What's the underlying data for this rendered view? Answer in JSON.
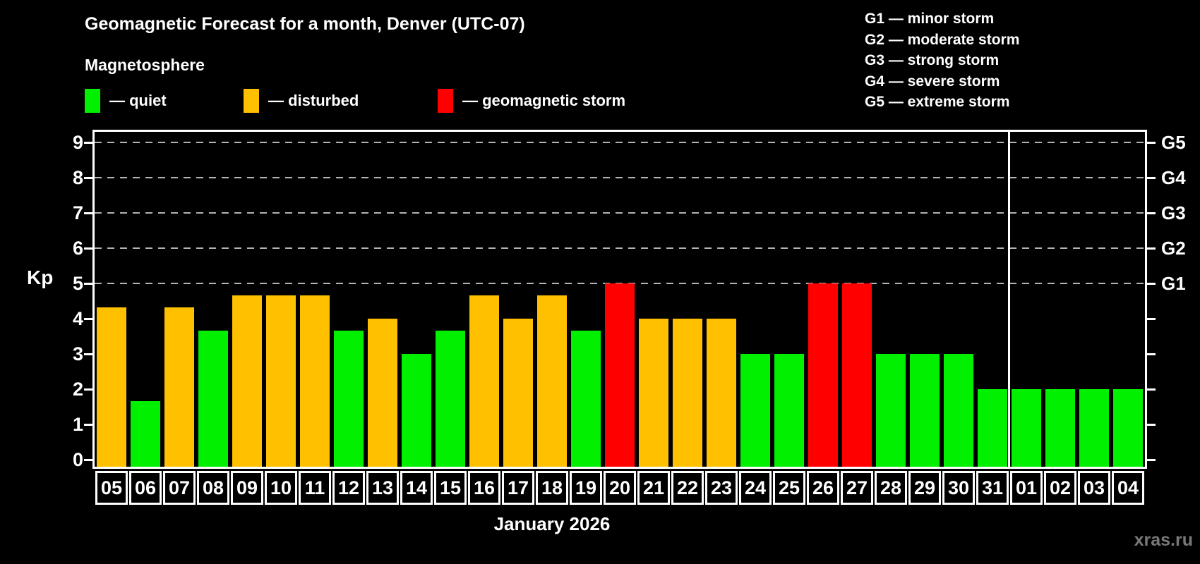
{
  "title": "Geomagnetic Forecast for a month, Denver (UTC-07)",
  "subtitle": "Magnetosphere",
  "watermark": "xras.ru",
  "status_legend": [
    {
      "key": "quiet",
      "label": "— quiet",
      "color": "#00f000"
    },
    {
      "key": "disturbed",
      "label": "— disturbed",
      "color": "#ffc000"
    },
    {
      "key": "storm",
      "label": "— geomagnetic storm",
      "color": "#ff0000"
    }
  ],
  "storm_scale_legend": [
    "G1 — minor storm",
    "G2 — moderate storm",
    "G3 — strong storm",
    "G4 — severe storm",
    "G5 — extreme storm"
  ],
  "chart_data": {
    "type": "bar",
    "title": "Geomagnetic Forecast for a month, Denver (UTC-07)",
    "ylabel": "Kp",
    "xlabel": "January 2026",
    "ylim": [
      0,
      9
    ],
    "yticks": [
      0,
      1,
      2,
      3,
      4,
      5,
      6,
      7,
      8,
      9
    ],
    "gridlines_at": [
      5,
      6,
      7,
      8,
      9
    ],
    "grid": true,
    "legend_position": "top",
    "right_axis_labels": [
      {
        "value": 5,
        "label": "G1"
      },
      {
        "value": 6,
        "label": "G2"
      },
      {
        "value": 7,
        "label": "G3"
      },
      {
        "value": 8,
        "label": "G4"
      },
      {
        "value": 9,
        "label": "G5"
      }
    ],
    "categories": [
      "05",
      "06",
      "07",
      "08",
      "09",
      "10",
      "11",
      "12",
      "13",
      "14",
      "15",
      "16",
      "17",
      "18",
      "19",
      "20",
      "21",
      "22",
      "23",
      "24",
      "25",
      "26",
      "27",
      "28",
      "29",
      "30",
      "31",
      "01",
      "02",
      "03",
      "04"
    ],
    "values": [
      4.33,
      1.67,
      4.33,
      3.67,
      4.67,
      4.67,
      4.67,
      3.67,
      4,
      3,
      3.67,
      4.67,
      4,
      4.67,
      3.67,
      5,
      4,
      4,
      4,
      3,
      3,
      5,
      5,
      3,
      3,
      3,
      2,
      2,
      2,
      2,
      2
    ],
    "statuses": [
      "disturbed",
      "quiet",
      "disturbed",
      "quiet",
      "disturbed",
      "disturbed",
      "disturbed",
      "quiet",
      "disturbed",
      "quiet",
      "quiet",
      "disturbed",
      "disturbed",
      "disturbed",
      "quiet",
      "storm",
      "disturbed",
      "disturbed",
      "disturbed",
      "quiet",
      "quiet",
      "storm",
      "storm",
      "quiet",
      "quiet",
      "quiet",
      "quiet",
      "quiet",
      "quiet",
      "quiet",
      "quiet"
    ],
    "bar_colors": {
      "quiet": "#00f000",
      "disturbed": "#ffc000",
      "storm": "#ff0000"
    },
    "month_separator_after_index": 26
  }
}
